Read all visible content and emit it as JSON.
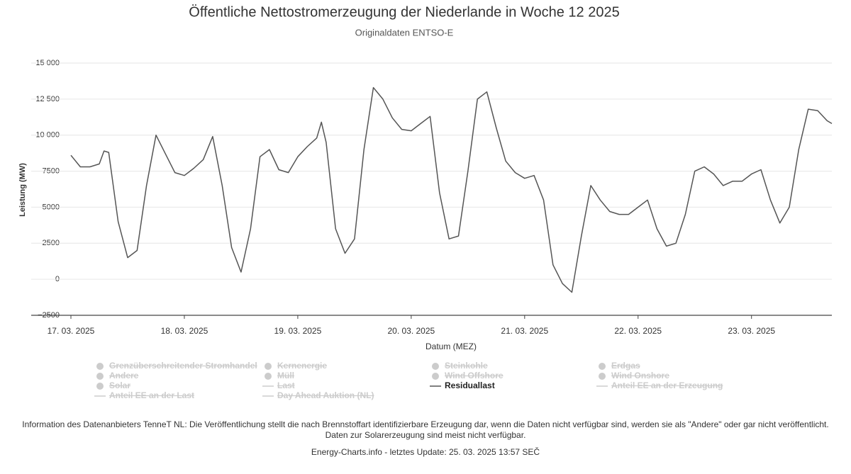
{
  "chart_data": {
    "type": "line",
    "title": "Öffentliche Nettostromerzeugung der Niederlande in Woche 12 2025",
    "subtitle": "Originaldaten ENTSO-E",
    "y_label": "Leistung (MW)",
    "x_label": "Datum (MEZ)",
    "xlim": [
      0,
      161
    ],
    "xticks": [
      {
        "value": 0,
        "label": "17. 03. 2025"
      },
      {
        "value": 24,
        "label": "18. 03. 2025"
      },
      {
        "value": 48,
        "label": "19. 03. 2025"
      },
      {
        "value": 72,
        "label": "20. 03. 2025"
      },
      {
        "value": 96,
        "label": "21. 03. 2025"
      },
      {
        "value": 120,
        "label": "22. 03. 2025"
      },
      {
        "value": 144,
        "label": "23. 03. 2025"
      }
    ],
    "ylim": [
      -2500,
      15000
    ],
    "yticks": [
      {
        "value": -2500,
        "label": "−2500"
      },
      0,
      2500,
      5000,
      7500,
      {
        "value": 10000,
        "label": "10 000"
      },
      {
        "value": 12500,
        "label": "12 500"
      },
      {
        "value": 15000,
        "label": "15 000"
      }
    ],
    "grid": true,
    "x": [
      0,
      2,
      4,
      6,
      7,
      8,
      10,
      12,
      14,
      16,
      18,
      20,
      22,
      24,
      26,
      28,
      30,
      32,
      34,
      36,
      38,
      40,
      42,
      44,
      46,
      48,
      50,
      52,
      53,
      54,
      56,
      58,
      60,
      62,
      64,
      66,
      68,
      70,
      72,
      74,
      76,
      78,
      80,
      82,
      84,
      86,
      88,
      90,
      92,
      94,
      96,
      98,
      100,
      102,
      104,
      106,
      108,
      110,
      112,
      114,
      116,
      118,
      120,
      122,
      124,
      126,
      128,
      130,
      132,
      134,
      136,
      138,
      140,
      142,
      144,
      146,
      148,
      150,
      152,
      154,
      156,
      158,
      160,
      161
    ],
    "series": [
      {
        "name": "Residuallast",
        "color": "#555555",
        "values": [
          8600,
          7800,
          7800,
          8000,
          8900,
          8800,
          4000,
          1500,
          2000,
          6500,
          10000,
          8700,
          7400,
          7200,
          7700,
          8300,
          9900,
          6500,
          2200,
          500,
          3500,
          8500,
          9000,
          7600,
          7400,
          8500,
          9200,
          9800,
          10900,
          9500,
          3500,
          1800,
          2800,
          9000,
          13300,
          12500,
          11200,
          10400,
          10300,
          10800,
          11300,
          6000,
          2800,
          3000,
          7500,
          12500,
          13000,
          10500,
          8200,
          7400,
          7000,
          7200,
          5500,
          1000,
          -300,
          -900,
          3000,
          6500,
          5500,
          4700,
          4500,
          4500,
          5000,
          5500,
          3500,
          2300,
          2500,
          4500,
          7500,
          7800,
          7300,
          6500,
          6800,
          6800,
          7300,
          7600,
          5500,
          3900,
          5000,
          9000,
          11800,
          11700,
          11000,
          10800
        ]
      }
    ],
    "hidden_series": [
      {
        "name": "Grenzüberschreitender Stromhandel",
        "symbol": "dot"
      },
      {
        "name": "Kernenergie",
        "symbol": "dot"
      },
      {
        "name": "Steinkohle",
        "symbol": "dot"
      },
      {
        "name": "Erdgas",
        "symbol": "dot"
      },
      {
        "name": "Andere",
        "symbol": "dot"
      },
      {
        "name": "Müll",
        "symbol": "dot"
      },
      {
        "name": "Wind Offshore",
        "symbol": "dot"
      },
      {
        "name": "Wind Onshore",
        "symbol": "dot"
      },
      {
        "name": "Solar",
        "symbol": "dot"
      },
      {
        "name": "Last",
        "symbol": "line"
      },
      {
        "name": "Anteil EE an der Erzeugung",
        "symbol": "line"
      },
      {
        "name": "Anteil EE an der Last",
        "symbol": "line"
      },
      {
        "name": "Day Ahead Auktion (NL)",
        "symbol": "line"
      }
    ]
  },
  "footer": {
    "info": "Information des Datenanbieters TenneT NL: Die Veröffentlichung stellt die nach Brennstoffart identifizierbare Erzeugung dar, wenn die Daten nicht verfügbar sind, werden sie als \"Andere\" oder gar nicht veröffentlicht. Daten zur Solarerzeugung sind meist nicht verfügbar.",
    "credit": "Energy-Charts.info - letztes Update: 25. 03. 2025 13:57 SEČ"
  }
}
